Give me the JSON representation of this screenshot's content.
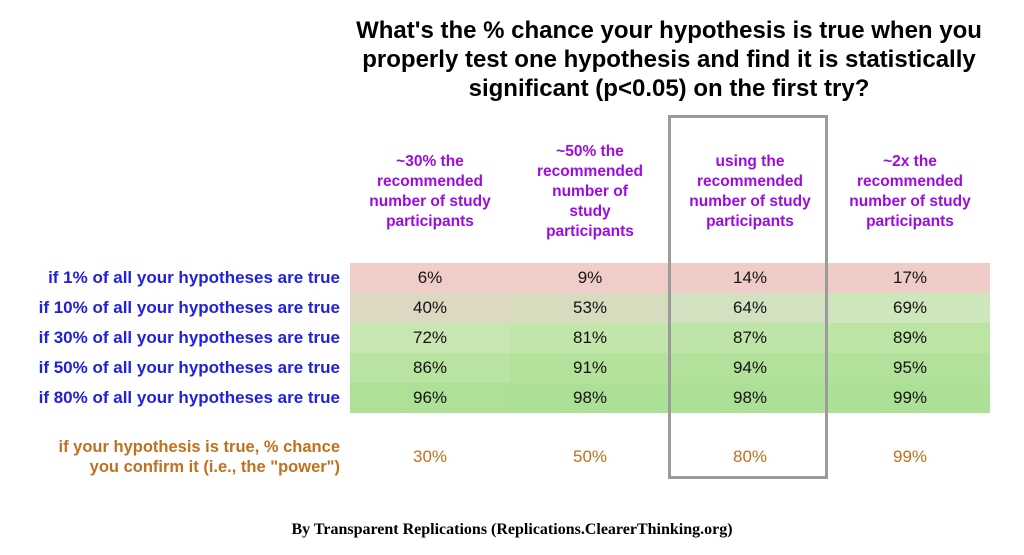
{
  "title": "What's the % chance your hypothesis is true when you properly test one hypothesis and find it is statistically significant (p<0.05) on the first try?",
  "header_labels": [
    "~30% the\nrecommended\nnumber of study\nparticipants",
    "~50% the\nrecommended\nnumber of\nstudy\nparticipants",
    "using the\nrecommended\nnumber of study\nparticipants",
    "~2x the\nrecommended\nnumber of study\nparticipants"
  ],
  "power_label": "if your hypothesis is true, % chance\nyou confirm it (i.e., the \"power\")",
  "footer": "By Transparent Replications (Replications.ClearerThinking.org)",
  "colors": {
    "header_text": "#9c0ce2",
    "row_label_text": "#2121dd",
    "power_text": "#c0701e",
    "highlight_border": "#9b9b9b",
    "cell_bg": [
      [
        "#f0cdc9",
        "#f0cdc9",
        "#efccc7",
        "#efccc7"
      ],
      [
        "#dcd8c1",
        "#d7dcbf",
        "#d2e2c0",
        "#cde6bb"
      ],
      [
        "#c8e6b1",
        "#c2e5aa",
        "#bee4a7",
        "#bce4a5"
      ],
      [
        "#b8e3a0",
        "#b4e29d",
        "#b2e19b",
        "#b1e19a"
      ],
      [
        "#aee098",
        "#ade097",
        "#ade097",
        "#ace096"
      ]
    ]
  },
  "chart_data": {
    "type": "heatmap",
    "title": "What's the % chance your hypothesis is true when you properly test one hypothesis and find it is statistically significant (p<0.05) on the first try?",
    "columns": [
      "~30% the recommended number of study participants",
      "~50% the recommended number of study participants",
      "using the recommended number of study participants",
      "~2x the recommended number of study participants"
    ],
    "rows": [
      "if 1% of all your hypotheses are true",
      "if 10% of all your hypotheses are true",
      "if 30% of all your hypotheses are true",
      "if 50% of all your hypotheses are true",
      "if 80% of all your hypotheses are true"
    ],
    "values": [
      [
        6,
        9,
        14,
        17
      ],
      [
        40,
        53,
        64,
        69
      ],
      [
        72,
        81,
        87,
        89
      ],
      [
        86,
        91,
        94,
        95
      ],
      [
        96,
        98,
        98,
        99
      ]
    ],
    "power_row_label": "if your hypothesis is true, % chance you confirm it (i.e., the \"power\")",
    "power_values": [
      30,
      50,
      80,
      99
    ],
    "highlighted_column_index": 2,
    "value_unit": "%",
    "color_scale": "red (low) to green (high)",
    "caption": "By Transparent Replications (Replications.ClearerThinking.org)"
  }
}
